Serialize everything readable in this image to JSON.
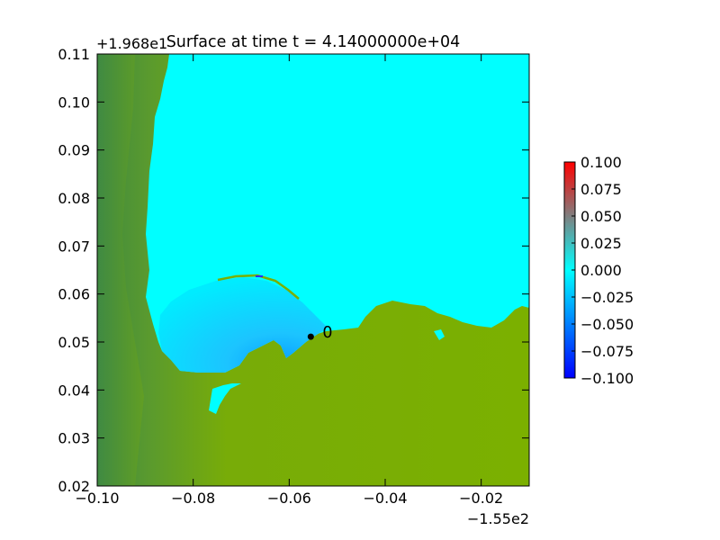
{
  "chart_data": {
    "type": "heatmap",
    "title": "Surface at time t = 4.14000000e+04",
    "xlabel": "",
    "ylabel": "",
    "x_offset_label": "−1.55e2",
    "y_offset_label": "+1.968e1",
    "xlim": [
      -0.1,
      -0.01
    ],
    "ylim": [
      0.02,
      0.11
    ],
    "x_ticks": [
      {
        "value": -0.1,
        "label": "−0.10"
      },
      {
        "value": -0.08,
        "label": "−0.08"
      },
      {
        "value": -0.06,
        "label": "−0.06"
      },
      {
        "value": -0.04,
        "label": "−0.04"
      },
      {
        "value": -0.02,
        "label": "−0.02"
      }
    ],
    "y_ticks": [
      {
        "value": 0.02,
        "label": "0.02"
      },
      {
        "value": 0.03,
        "label": "0.03"
      },
      {
        "value": 0.04,
        "label": "0.04"
      },
      {
        "value": 0.05,
        "label": "0.05"
      },
      {
        "value": 0.06,
        "label": "0.06"
      },
      {
        "value": 0.07,
        "label": "0.07"
      },
      {
        "value": 0.08,
        "label": "0.08"
      },
      {
        "value": 0.09,
        "label": "0.09"
      },
      {
        "value": 0.1,
        "label": "0.10"
      },
      {
        "value": 0.11,
        "label": "0.11"
      }
    ],
    "colorbar": {
      "min": -0.1,
      "max": 0.1,
      "ticks": [
        {
          "value": 0.1,
          "label": "0.100"
        },
        {
          "value": 0.075,
          "label": "0.075"
        },
        {
          "value": 0.05,
          "label": "0.050"
        },
        {
          "value": 0.025,
          "label": "0.025"
        },
        {
          "value": 0.0,
          "label": "0.000"
        },
        {
          "value": -0.025,
          "label": "−0.025"
        },
        {
          "value": -0.05,
          "label": "−0.050"
        },
        {
          "value": -0.075,
          "label": "−0.075"
        },
        {
          "value": -0.1,
          "label": "−0.100"
        }
      ],
      "colors": [
        "#0000ff",
        "#00ffff",
        "#ff0000"
      ]
    },
    "water_color": "#00ffff",
    "land_color": "#7aaf00",
    "land_dark_color": "#3f8f3f",
    "markers": [
      {
        "label": "0",
        "x": -0.0555,
        "y": 0.0511
      }
    ]
  }
}
